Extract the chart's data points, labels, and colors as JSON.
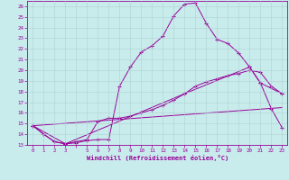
{
  "title": "",
  "xlabel": "Windchill (Refroidissement éolien,°C)",
  "background_color": "#c8ecec",
  "grid_color": "#b0d0d0",
  "line_color": "#990099",
  "xlim": [
    -0.5,
    23.5
  ],
  "ylim": [
    13,
    26.5
  ],
  "xticks": [
    0,
    1,
    2,
    3,
    4,
    5,
    6,
    7,
    8,
    9,
    10,
    11,
    12,
    13,
    14,
    15,
    16,
    17,
    18,
    19,
    20,
    21,
    22,
    23
  ],
  "xtick_labels": [
    "0",
    "1",
    "2",
    "3",
    "",
    "5",
    "6",
    "7",
    "8",
    "9",
    "10",
    "11",
    "12",
    "13",
    "14",
    "15",
    "16",
    "17",
    "18",
    "19",
    "20",
    "21",
    "22",
    "23"
  ],
  "yticks": [
    13,
    14,
    15,
    16,
    17,
    18,
    19,
    20,
    21,
    22,
    23,
    24,
    25,
    26
  ],
  "line1_x": [
    0,
    1,
    2,
    3,
    4,
    5,
    6,
    7,
    8,
    9,
    10,
    11,
    12,
    13,
    14,
    15,
    16,
    17,
    18,
    19,
    20,
    21,
    22,
    23
  ],
  "line1_y": [
    14.8,
    14.0,
    13.3,
    13.1,
    13.2,
    13.4,
    13.5,
    13.5,
    18.5,
    20.3,
    21.7,
    22.3,
    23.2,
    25.1,
    26.2,
    26.3,
    24.4,
    22.9,
    22.5,
    21.6,
    20.3,
    18.8,
    16.4,
    14.6
  ],
  "line2_x": [
    0,
    1,
    2,
    3,
    4,
    5,
    6,
    7,
    8,
    9,
    10,
    11,
    12,
    13,
    14,
    15,
    16,
    17,
    18,
    19,
    20,
    21,
    22,
    23
  ],
  "line2_y": [
    14.8,
    14.0,
    13.3,
    13.1,
    13.3,
    13.5,
    15.2,
    15.5,
    15.5,
    15.7,
    16.0,
    16.3,
    16.7,
    17.2,
    17.8,
    18.5,
    18.9,
    19.2,
    19.5,
    19.7,
    20.0,
    19.8,
    18.5,
    17.8
  ],
  "line3_x": [
    0,
    23
  ],
  "line3_y": [
    14.8,
    16.5
  ],
  "line4_x": [
    0,
    3,
    14,
    20,
    21,
    23
  ],
  "line4_y": [
    14.8,
    13.1,
    17.8,
    20.3,
    18.8,
    17.8
  ]
}
